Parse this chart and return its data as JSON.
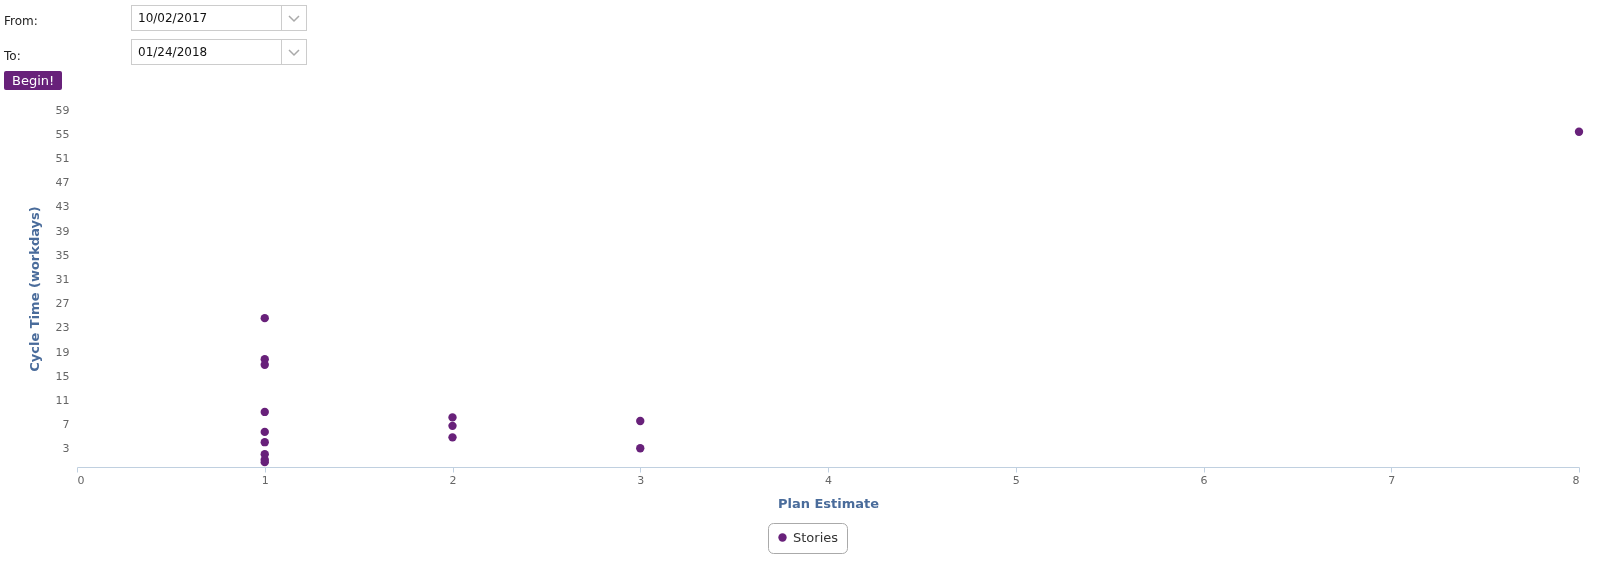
{
  "chart_data": {
    "type": "scatter",
    "xlabel": "Plan Estimate",
    "ylabel": "Cycle Time (workdays)",
    "xlim": [
      0,
      8
    ],
    "xticks": [
      0,
      1,
      2,
      3,
      4,
      5,
      6,
      7,
      8
    ],
    "ylim": [
      0,
      59
    ],
    "yticks": [
      3,
      7,
      11,
      15,
      19,
      23,
      27,
      31,
      35,
      39,
      43,
      47,
      51,
      55,
      59
    ],
    "grid": false,
    "legend": "bottom",
    "marker": "circle",
    "series": [
      {
        "name": "Stories",
        "color": "#68217a",
        "x": [
          1,
          1,
          1,
          1,
          1,
          1,
          1,
          1,
          1,
          2,
          2,
          2,
          3,
          3,
          8
        ],
        "values": [
          24.6,
          17.8,
          16.9,
          9.1,
          5.8,
          4.1,
          2.1,
          1.2,
          0.8,
          8.2,
          6.8,
          4.9,
          7.6,
          3.1,
          55.4
        ]
      }
    ],
    "annotations": [
      "From:",
      "10/02/2017",
      "To:",
      "01/24/2018",
      "Begin!"
    ]
  }
}
